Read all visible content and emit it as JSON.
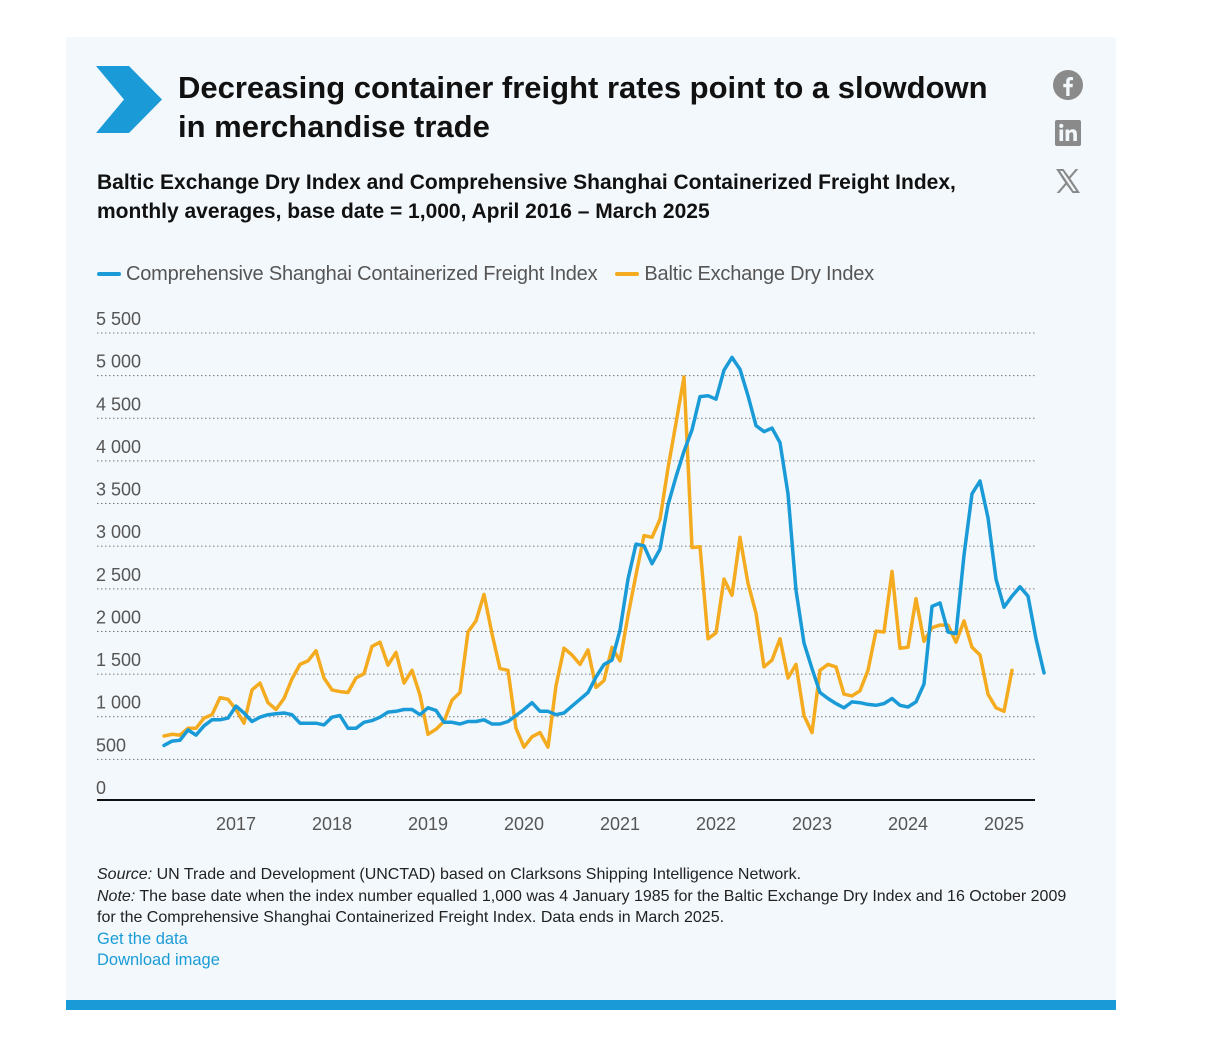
{
  "title": "Decreasing container freight rates point to a slowdown in merchandise trade",
  "subtitle": "Baltic Exchange Dry Index and Comprehensive Shanghai Containerized Freight Index, monthly averages, base date = 1,000, April 2016 – March 2025",
  "share_icons": [
    "facebook-icon",
    "linkedin-icon",
    "x-icon"
  ],
  "colors": {
    "accent": "#1a9bd7",
    "scfi": "#1a9bd7",
    "bdi": "#f5ab1f",
    "card_bg": "#f3f8fc"
  },
  "chart_data": {
    "type": "line",
    "title": "",
    "xlabel": "",
    "ylabel": "",
    "y_tick_labels": [
      "0",
      "500",
      "1 000",
      "1 500",
      "2 000",
      "2 500",
      "3 000",
      "3 500",
      "4 000",
      "4 500",
      "5 000",
      "5 500"
    ],
    "y_ticks": [
      0,
      500,
      1000,
      1500,
      2000,
      2500,
      3000,
      3500,
      4000,
      4500,
      5000,
      5500
    ],
    "ylim": [
      0,
      5500
    ],
    "x_tick_labels": [
      "2017",
      "2018",
      "2019",
      "2020",
      "2021",
      "2022",
      "2023",
      "2024",
      "2025"
    ],
    "x_start": "2016-04",
    "x_end": "2025-03",
    "grid": "horizontal dotted",
    "legend": "top-left",
    "series": [
      {
        "name": "Comprehensive Shanghai Containerized Freight Index",
        "color": "#1a9bd7",
        "values": [
          500,
          550,
          560,
          680,
          620,
          730,
          800,
          800,
          820,
          960,
          880,
          780,
          830,
          860,
          870,
          880,
          860,
          760,
          760,
          760,
          740,
          830,
          850,
          700,
          700,
          770,
          790,
          830,
          890,
          900,
          920,
          920,
          860,
          940,
          910,
          770,
          770,
          750,
          780,
          780,
          800,
          750,
          750,
          780,
          850,
          920,
          1000,
          900,
          900,
          860,
          880,
          960,
          1040,
          1120,
          1300,
          1450,
          1500,
          1850,
          2450,
          2860,
          2840,
          2630,
          2800,
          3320,
          3650,
          3950,
          4200,
          4590,
          4600,
          4560,
          4900,
          5050,
          4910,
          4600,
          4250,
          4180,
          4220,
          4050,
          3450,
          2320,
          1700,
          1400,
          1120,
          1050,
          990,
          940,
          1010,
          1000,
          980,
          970,
          990,
          1050,
          970,
          950,
          1010,
          1220,
          2130,
          2170,
          1830,
          1810,
          2730,
          3450,
          3600,
          3170,
          2450,
          2120,
          2250,
          2360,
          2250,
          1750,
          1350
        ]
      },
      {
        "name": "Baltic Exchange Dry Index",
        "color": "#f5ab1f",
        "values": [
          610,
          630,
          620,
          700,
          700,
          820,
          860,
          1060,
          1040,
          920,
          760,
          1150,
          1230,
          1000,
          920,
          1050,
          1280,
          1450,
          1490,
          1610,
          1290,
          1150,
          1130,
          1120,
          1290,
          1340,
          1660,
          1710,
          1440,
          1590,
          1230,
          1380,
          1090,
          630,
          690,
          780,
          1030,
          1120,
          1830,
          1960,
          2270,
          1810,
          1400,
          1380,
          700,
          480,
          600,
          650,
          480,
          1200,
          1640,
          1560,
          1450,
          1620,
          1180,
          1260,
          1650,
          1490,
          2020,
          2500,
          2960,
          2940,
          3150,
          3750,
          4280,
          4820,
          2820,
          2830,
          1750,
          1820,
          2450,
          2260,
          2940,
          2400,
          2050,
          1420,
          1500,
          1750,
          1290,
          1450,
          850,
          650,
          1380,
          1450,
          1420,
          1100,
          1080,
          1140,
          1380,
          1840,
          1830,
          2540,
          1640,
          1650,
          2220,
          1720,
          1880,
          1910,
          1910,
          1710,
          1960,
          1650,
          1560,
          1100,
          940,
          900,
          1380
        ]
      }
    ]
  },
  "source": {
    "source_label": "Source:",
    "source_text": "UN Trade and Development (UNCTAD) based on Clarksons Shipping Intelligence Network.",
    "note_label": "Note:",
    "note_text": "The base date when the index number equalled 1,000 was 4 January 1985 for the Baltic Exchange Dry Index and 16 October 2009 for the Comprehensive Shanghai Containerized Freight Index. Data ends in March 2025."
  },
  "links": {
    "get_data": "Get the data",
    "download_image": "Download image"
  }
}
